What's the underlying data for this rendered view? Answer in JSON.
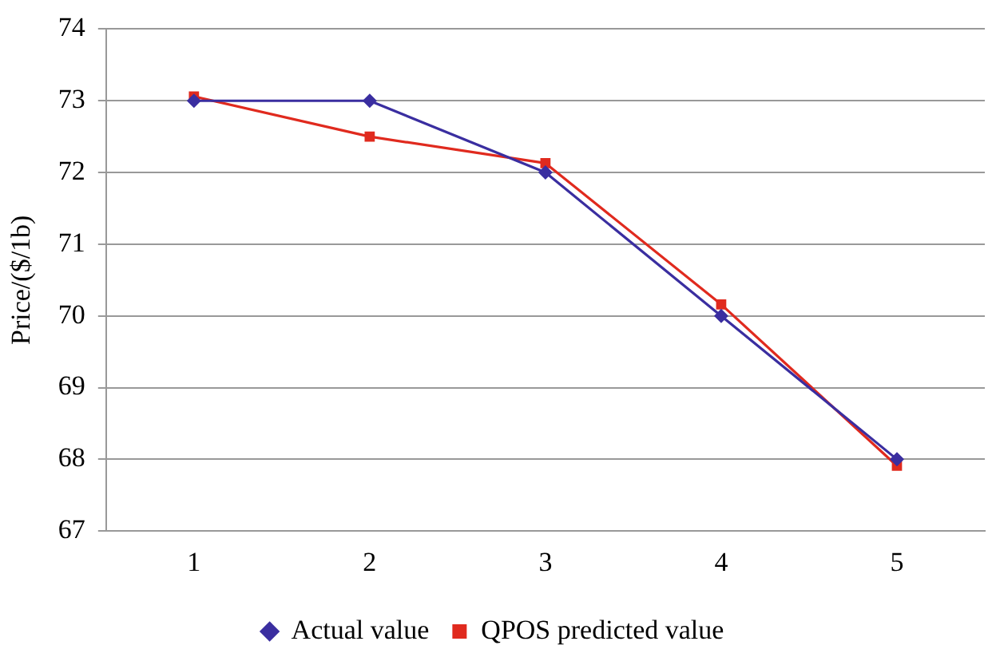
{
  "chart_data": {
    "type": "line",
    "ylabel": "Price/($/1b)",
    "categories": [
      "1",
      "2",
      "3",
      "4",
      "5"
    ],
    "series": [
      {
        "name": "Actual value",
        "color": "#3a2ea0",
        "marker": "diamond",
        "values": [
          73,
          73,
          72,
          70,
          68
        ]
      },
      {
        "name": "QPOS predicted value",
        "color": "#e02a1e",
        "marker": "square",
        "values": [
          73.06,
          72.5,
          72.13,
          70.16,
          67.91
        ]
      }
    ],
    "ylim": [
      67,
      74
    ],
    "yticks": [
      67,
      68,
      69,
      70,
      71,
      72,
      73,
      74
    ],
    "grid": "y",
    "legend": "bottom",
    "line_style": "solid"
  }
}
